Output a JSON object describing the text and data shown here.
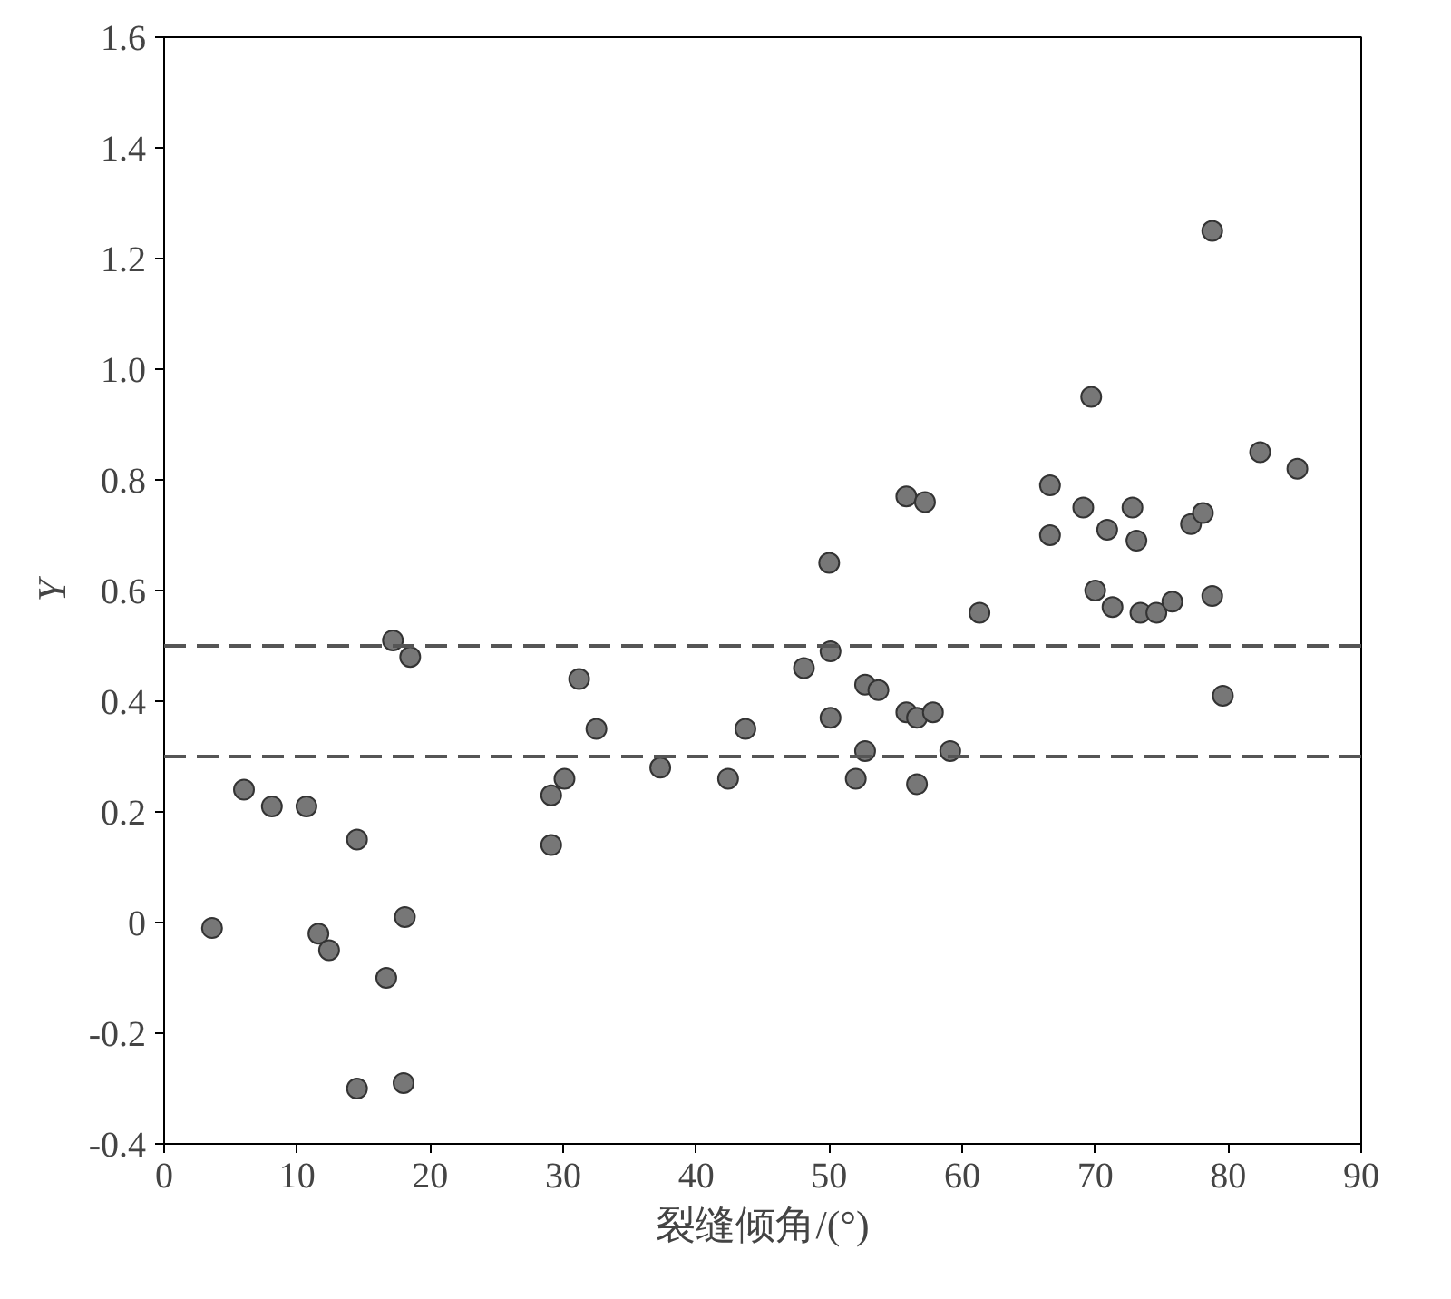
{
  "chart_data": {
    "type": "scatter",
    "xlabel": "裂缝倾角/(°)",
    "ylabel": "Y",
    "xlim": [
      0,
      90
    ],
    "xticks": [
      0,
      10,
      20,
      30,
      40,
      50,
      60,
      70,
      80,
      90
    ],
    "ylim": [
      -0.4,
      1.6
    ],
    "yticks": [
      -0.4,
      -0.2,
      0,
      0.2,
      0.4,
      0.6,
      0.8,
      {
        "value": 1,
        "label": "1.0"
      },
      1.2,
      1.4,
      1.6
    ],
    "grid": false,
    "marker": "circle",
    "ref_lines": [
      {
        "axis": "y",
        "value": 0.5,
        "color": "#555555",
        "line_style": "dashed"
      },
      {
        "axis": "y",
        "value": 0.3,
        "color": "#555555",
        "line_style": "dashed"
      }
    ],
    "series": [
      {
        "color": "#777777",
        "x": [
          3.6,
          6.0,
          8.1,
          10.7,
          11.6,
          12.4,
          14.5,
          14.5,
          16.7,
          17.2,
          18.0,
          18.1,
          18.5,
          29.1,
          29.1,
          30.1,
          31.2,
          32.5,
          37.3,
          42.4,
          43.7,
          48.1,
          50.0,
          50.1,
          50.1,
          52.0,
          52.7,
          52.7,
          53.7,
          55.8,
          55.8,
          56.6,
          56.6,
          57.2,
          57.8,
          59.1,
          61.3,
          66.6,
          66.6,
          69.1,
          69.7,
          70.0,
          70.9,
          71.3,
          72.8,
          73.1,
          73.4,
          74.6,
          75.8,
          77.2,
          78.1,
          78.8,
          78.8,
          79.6,
          82.4,
          85.2
        ],
        "values": [
          -0.01,
          0.24,
          0.21,
          0.21,
          -0.02,
          -0.05,
          0.15,
          -0.3,
          -0.1,
          0.51,
          -0.29,
          0.01,
          0.48,
          0.14,
          0.23,
          0.26,
          0.44,
          0.35,
          0.28,
          0.26,
          0.35,
          0.46,
          0.65,
          0.49,
          0.37,
          0.26,
          0.43,
          0.31,
          0.42,
          0.77,
          0.38,
          0.25,
          0.37,
          0.76,
          0.38,
          0.31,
          0.56,
          0.79,
          0.7,
          0.75,
          0.95,
          0.6,
          0.71,
          0.57,
          0.75,
          0.69,
          0.56,
          0.56,
          0.58,
          0.72,
          0.74,
          1.25,
          0.59,
          0.41,
          0.85,
          0.82
        ]
      }
    ]
  }
}
